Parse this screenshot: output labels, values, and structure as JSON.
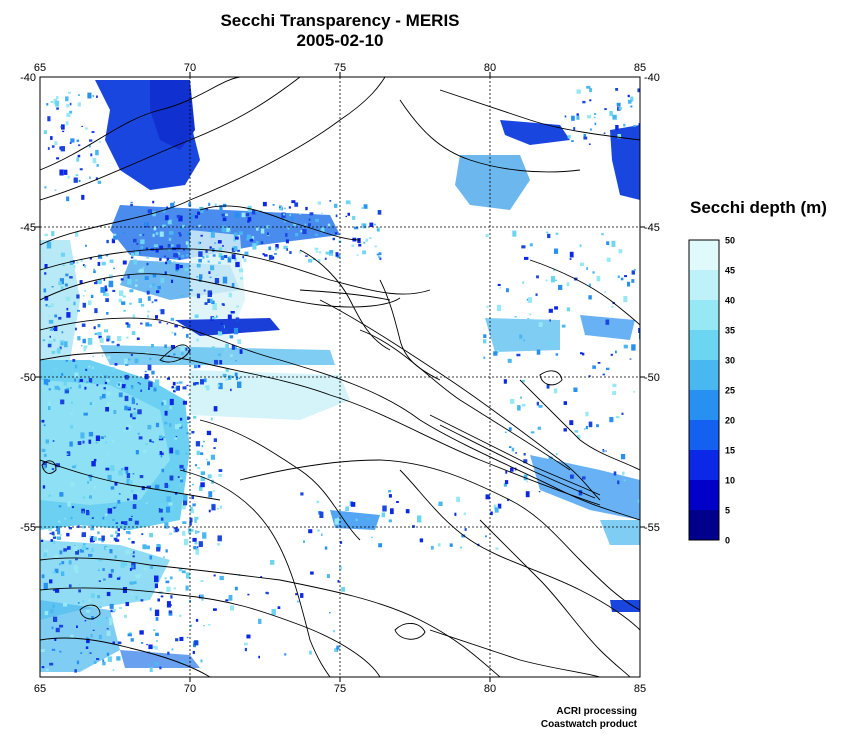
{
  "title": "Secchi Transparency - MERIS",
  "date": "2005-02-10",
  "map": {
    "lon_range": [
      65,
      85
    ],
    "lat_range": [
      -60,
      -40
    ],
    "lon_ticks": [
      65,
      70,
      75,
      80,
      85
    ],
    "lon_tick_labels": [
      "65",
      "70",
      "75",
      "80",
      "85"
    ],
    "lat_ticks": [
      -40,
      -45,
      -50,
      -55
    ],
    "lat_tick_labels": [
      "-40",
      "-45",
      "-50",
      "-55"
    ],
    "grid": "dotted",
    "bathymetry_contours": true
  },
  "colorbar": {
    "title": "Secchi depth (m)",
    "min": 0,
    "max": 50,
    "tick_labels": [
      "0",
      "5",
      "10",
      "15",
      "20",
      "25",
      "30",
      "35",
      "40",
      "45",
      "50"
    ],
    "colors": [
      "#00008c",
      "#0000c8",
      "#0a28e6",
      "#1460f0",
      "#2890f0",
      "#4ab8f0",
      "#6cd6f2",
      "#96e8f4",
      "#bef2f8",
      "#e0fafc"
    ]
  },
  "credits": {
    "line1": "ACRI processing",
    "line2": "Coastwatch product"
  }
}
